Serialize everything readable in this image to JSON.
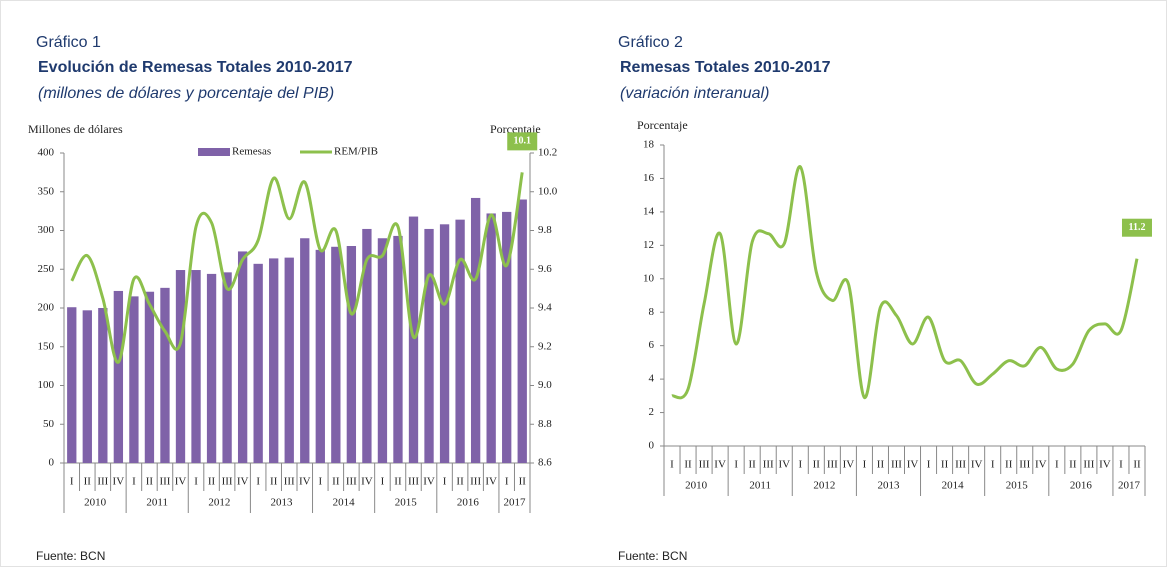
{
  "chart_data": [
    {
      "type": "bar",
      "label": "Gráfico 1",
      "title": "Evolución de Remesas Totales 2010-2017",
      "subtitle": "(millones de dólares y  porcentaje del PIB)",
      "ylabel": "Millones de dólares",
      "y2label": "Porcentaje",
      "source": "Fuente: BCN",
      "categories": [
        "I",
        "II",
        "III",
        "IV",
        "I",
        "II",
        "III",
        "IV",
        "I",
        "II",
        "III",
        "IV",
        "I",
        "II",
        "III",
        "IV",
        "I",
        "II",
        "III",
        "IV",
        "I",
        "II",
        "III",
        "IV",
        "I",
        "II",
        "III",
        "IV",
        "I",
        "II"
      ],
      "x_groups": [
        "2010",
        "2011",
        "2012",
        "2013",
        "2014",
        "2015",
        "2016",
        "2017"
      ],
      "series": [
        {
          "name": "Remesas",
          "type": "bar",
          "color": "#7f62a8",
          "values": [
            201,
            197,
            200,
            222,
            215,
            221,
            226,
            249,
            249,
            244,
            246,
            273,
            257,
            264,
            265,
            290,
            275,
            279,
            280,
            302,
            290,
            293,
            318,
            302,
            308,
            314,
            342,
            322,
            324,
            340
          ]
        },
        {
          "name": "REM/PIB",
          "type": "line",
          "axis": "y2",
          "color": "#8dc04c",
          "values": [
            9.54,
            9.67,
            9.45,
            9.12,
            9.55,
            9.42,
            9.28,
            9.22,
            9.82,
            9.84,
            9.5,
            9.65,
            9.75,
            10.07,
            9.86,
            10.05,
            9.7,
            9.8,
            9.37,
            9.65,
            9.67,
            9.82,
            9.25,
            9.57,
            9.42,
            9.65,
            9.55,
            9.88,
            9.62,
            10.1
          ],
          "value_labels": [
            null,
            null,
            null,
            null,
            null,
            null,
            null,
            null,
            null,
            null,
            null,
            null,
            null,
            null,
            null,
            null,
            null,
            null,
            null,
            null,
            null,
            null,
            null,
            null,
            null,
            null,
            null,
            null,
            null,
            "10.1"
          ]
        }
      ],
      "ylim": [
        0,
        400
      ],
      "yticks": [
        0,
        50,
        100,
        150,
        200,
        250,
        300,
        350,
        400
      ],
      "y2lim": [
        8.6,
        10.2
      ],
      "y2ticks": [
        8.6,
        8.8,
        {
          "value": 9,
          "label": "9.0"
        },
        9.2,
        9.4,
        9.6,
        9.8,
        {
          "value": 10,
          "label": "10.0"
        },
        10.2
      ],
      "legend": "top",
      "grid": false
    },
    {
      "type": "line",
      "label": "Gráfico 2",
      "title": "Remesas Totales 2010-2017",
      "subtitle": "(variación interanual)",
      "ylabel": "Porcentaje",
      "source": "Fuente: BCN",
      "categories": [
        "I",
        "II",
        "III",
        "IV",
        "I",
        "II",
        "III",
        "IV",
        "I",
        "II",
        "III",
        "IV",
        "I",
        "II",
        "III",
        "IV",
        "I",
        "II",
        "III",
        "IV",
        "I",
        "II",
        "III",
        "IV",
        "I",
        "II",
        "III",
        "IV",
        "I",
        "II"
      ],
      "x_groups": [
        "2010",
        "2011",
        "2012",
        "2013",
        "2014",
        "2015",
        "2016",
        "2017"
      ],
      "series": [
        {
          "name": "Remesas",
          "type": "line",
          "color": "#8dc04c",
          "values": [
            3.0,
            3.4,
            8.5,
            12.7,
            6.1,
            12.2,
            12.7,
            12.1,
            16.7,
            10.4,
            8.7,
            9.7,
            2.9,
            8.3,
            7.8,
            6.1,
            7.7,
            5.1,
            5.1,
            3.7,
            4.3,
            5.1,
            4.8,
            5.9,
            4.6,
            4.9,
            6.9,
            7.3,
            6.9,
            11.2
          ],
          "value_labels": [
            null,
            null,
            null,
            null,
            null,
            null,
            null,
            null,
            null,
            null,
            null,
            null,
            null,
            null,
            null,
            null,
            null,
            null,
            null,
            null,
            null,
            null,
            null,
            null,
            null,
            null,
            null,
            null,
            null,
            "11.2"
          ]
        }
      ],
      "ylim": [
        0,
        18
      ],
      "yticks": [
        0,
        2,
        4,
        6,
        8,
        10,
        12,
        14,
        16,
        18
      ],
      "legend": "none",
      "grid": false
    }
  ]
}
